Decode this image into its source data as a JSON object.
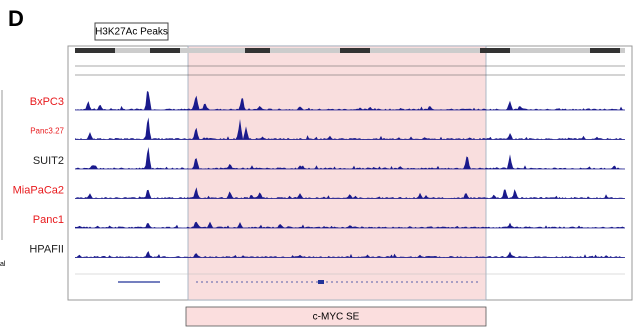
{
  "panel_label": "D",
  "header": {
    "title": "H3K27Ac Peaks"
  },
  "tracks": [
    {
      "name": "BxPC3",
      "color": "#e8191c"
    },
    {
      "name": "Panc3.27",
      "color": "#e8191c"
    },
    {
      "name": "SUIT2",
      "color": "#222222"
    },
    {
      "name": "MiaPaCa2",
      "color": "#e8191c"
    },
    {
      "name": "Panc1",
      "color": "#e8191c"
    },
    {
      "name": "HPAFII",
      "color": "#222222"
    }
  ],
  "side_text": "al",
  "region": {
    "label": "c-MYC SE"
  }
}
